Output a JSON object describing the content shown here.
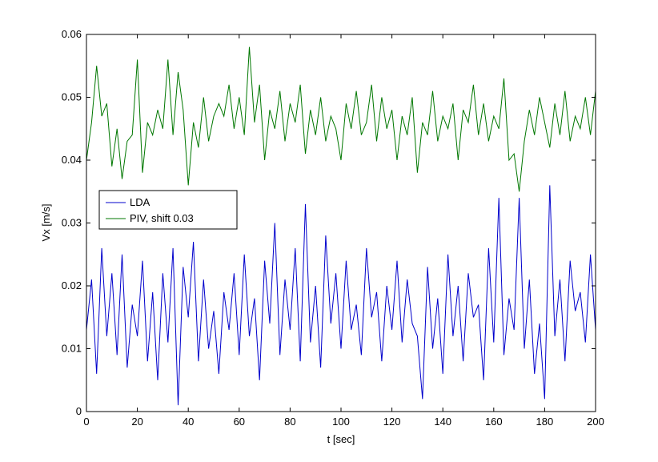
{
  "chart_data": {
    "type": "line",
    "title": "",
    "xlabel": "t [sec]",
    "ylabel": "Vx [m/s]",
    "xlim": [
      0,
      200
    ],
    "ylim": [
      0,
      0.06
    ],
    "grid": false,
    "legend_position": "left-middle",
    "x_ticks": [
      0,
      20,
      40,
      60,
      80,
      100,
      120,
      140,
      160,
      180,
      200
    ],
    "x_tick_labels": [
      "0",
      "20",
      "40",
      "60",
      "80",
      "100",
      "120",
      "140",
      "160",
      "180",
      "200"
    ],
    "y_ticks": [
      0,
      0.01,
      0.02,
      0.03,
      0.04,
      0.05,
      0.06
    ],
    "y_tick_labels": [
      "0",
      "0.01",
      "0.02",
      "0.03",
      "0.04",
      "0.05",
      "0.06"
    ],
    "series": [
      {
        "name": "LDA",
        "color": "#0000cc",
        "x": [
          0,
          2,
          4,
          6,
          8,
          10,
          12,
          14,
          16,
          18,
          20,
          22,
          24,
          26,
          28,
          30,
          32,
          34,
          36,
          38,
          40,
          42,
          44,
          46,
          48,
          50,
          52,
          54,
          56,
          58,
          60,
          62,
          64,
          66,
          68,
          70,
          72,
          74,
          76,
          78,
          80,
          82,
          84,
          86,
          88,
          90,
          92,
          94,
          96,
          98,
          100,
          102,
          104,
          106,
          108,
          110,
          112,
          114,
          116,
          118,
          120,
          122,
          124,
          126,
          128,
          130,
          132,
          134,
          136,
          138,
          140,
          142,
          144,
          146,
          148,
          150,
          152,
          154,
          156,
          158,
          160,
          162,
          164,
          166,
          168,
          170,
          172,
          174,
          176,
          178,
          180,
          182,
          184,
          186,
          188,
          190,
          192,
          194,
          196,
          198,
          200
        ],
        "y": [
          0.013,
          0.021,
          0.006,
          0.026,
          0.012,
          0.022,
          0.009,
          0.025,
          0.007,
          0.017,
          0.012,
          0.024,
          0.008,
          0.019,
          0.005,
          0.022,
          0.011,
          0.026,
          0.001,
          0.023,
          0.015,
          0.027,
          0.008,
          0.021,
          0.01,
          0.016,
          0.006,
          0.019,
          0.013,
          0.022,
          0.009,
          0.025,
          0.012,
          0.018,
          0.005,
          0.024,
          0.014,
          0.03,
          0.009,
          0.021,
          0.013,
          0.026,
          0.008,
          0.033,
          0.011,
          0.02,
          0.007,
          0.028,
          0.014,
          0.022,
          0.01,
          0.024,
          0.013,
          0.017,
          0.009,
          0.026,
          0.015,
          0.019,
          0.008,
          0.02,
          0.013,
          0.024,
          0.011,
          0.021,
          0.014,
          0.012,
          0.002,
          0.023,
          0.01,
          0.018,
          0.006,
          0.025,
          0.012,
          0.02,
          0.008,
          0.022,
          0.015,
          0.017,
          0.005,
          0.026,
          0.011,
          0.034,
          0.009,
          0.018,
          0.013,
          0.034,
          0.01,
          0.021,
          0.006,
          0.014,
          0.002,
          0.036,
          0.012,
          0.021,
          0.008,
          0.024,
          0.016,
          0.019,
          0.011,
          0.025,
          0.013
        ]
      },
      {
        "name": "PIV, shift 0.03",
        "color": "#007700",
        "x": [
          0,
          2,
          4,
          6,
          8,
          10,
          12,
          14,
          16,
          18,
          20,
          22,
          24,
          26,
          28,
          30,
          32,
          34,
          36,
          38,
          40,
          42,
          44,
          46,
          48,
          50,
          52,
          54,
          56,
          58,
          60,
          62,
          64,
          66,
          68,
          70,
          72,
          74,
          76,
          78,
          80,
          82,
          84,
          86,
          88,
          90,
          92,
          94,
          96,
          98,
          100,
          102,
          104,
          106,
          108,
          110,
          112,
          114,
          116,
          118,
          120,
          122,
          124,
          126,
          128,
          130,
          132,
          134,
          136,
          138,
          140,
          142,
          144,
          146,
          148,
          150,
          152,
          154,
          156,
          158,
          160,
          162,
          164,
          166,
          168,
          170,
          172,
          174,
          176,
          178,
          180,
          182,
          184,
          186,
          188,
          190,
          192,
          194,
          196,
          198,
          200
        ],
        "y": [
          0.04,
          0.046,
          0.055,
          0.047,
          0.049,
          0.039,
          0.045,
          0.037,
          0.043,
          0.044,
          0.056,
          0.038,
          0.046,
          0.044,
          0.048,
          0.045,
          0.056,
          0.044,
          0.054,
          0.048,
          0.036,
          0.046,
          0.042,
          0.05,
          0.043,
          0.047,
          0.049,
          0.047,
          0.052,
          0.045,
          0.05,
          0.044,
          0.058,
          0.046,
          0.052,
          0.04,
          0.048,
          0.045,
          0.051,
          0.043,
          0.049,
          0.046,
          0.052,
          0.041,
          0.048,
          0.044,
          0.05,
          0.043,
          0.047,
          0.045,
          0.04,
          0.049,
          0.045,
          0.051,
          0.044,
          0.046,
          0.052,
          0.043,
          0.05,
          0.045,
          0.048,
          0.04,
          0.047,
          0.044,
          0.05,
          0.038,
          0.046,
          0.044,
          0.051,
          0.043,
          0.047,
          0.045,
          0.049,
          0.04,
          0.048,
          0.046,
          0.052,
          0.044,
          0.049,
          0.043,
          0.047,
          0.045,
          0.053,
          0.04,
          0.041,
          0.035,
          0.043,
          0.048,
          0.044,
          0.05,
          0.046,
          0.042,
          0.049,
          0.044,
          0.051,
          0.043,
          0.047,
          0.045,
          0.05,
          0.044,
          0.051
        ]
      }
    ]
  }
}
